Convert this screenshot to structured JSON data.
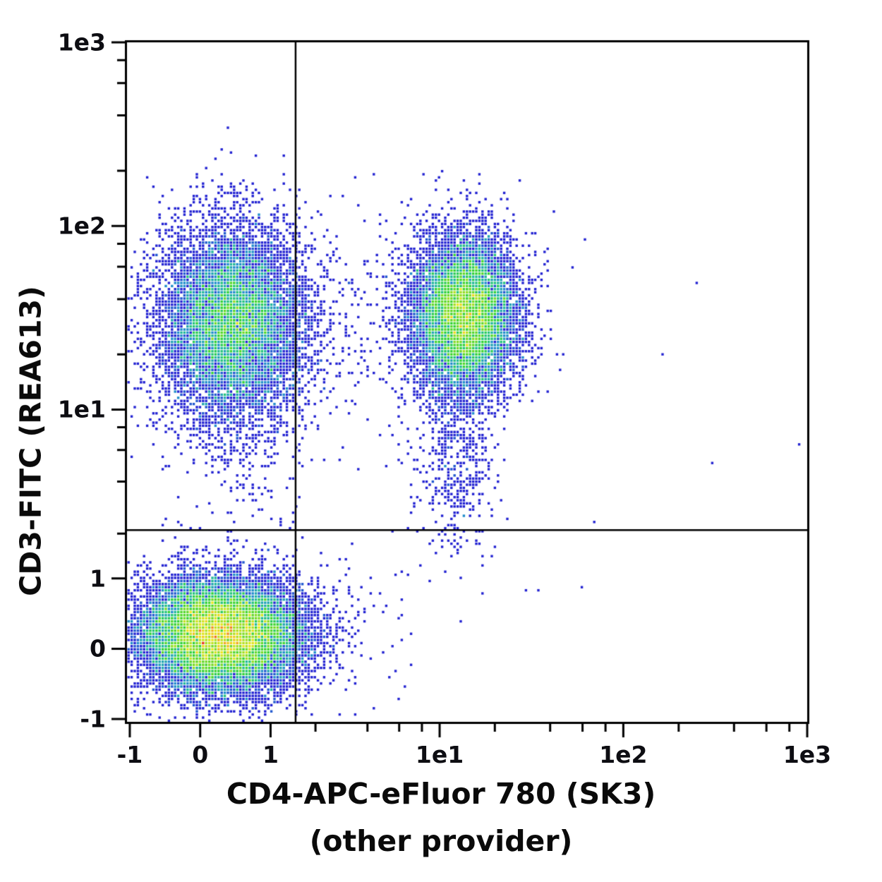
{
  "page": {
    "background": "#ffffff"
  },
  "chart_data": {
    "type": "scatter",
    "subtype": "flow-cytometry pseudocolor density dot plot",
    "title": "",
    "xlabel": "CD4-APC-eFluor 780 (SK3)",
    "xlabel_sub": "(other provider)",
    "ylabel": "CD3-FITC (REA613)",
    "axis_scale": "biexponential (asinh): linear around 0, logarithmic decades above 1",
    "x_range": [
      -1.05,
      1000
    ],
    "y_range": [
      -1.05,
      1000
    ],
    "x_major_ticks": [
      {
        "value": -1,
        "label": "-1"
      },
      {
        "value": 0,
        "label": "0"
      },
      {
        "value": 1,
        "label": "1"
      },
      {
        "value": 10,
        "label": "1e1"
      },
      {
        "value": 100,
        "label": "1e2"
      },
      {
        "value": 1000,
        "label": "1e3"
      }
    ],
    "y_major_ticks": [
      {
        "value": -1,
        "label": "-1"
      },
      {
        "value": 0,
        "label": "0"
      },
      {
        "value": 1,
        "label": "1"
      },
      {
        "value": 10,
        "label": "1e1"
      },
      {
        "value": 100,
        "label": "1e2"
      },
      {
        "value": 1000,
        "label": "1e3"
      }
    ],
    "minor_tick_values": [
      2,
      4,
      6,
      8,
      20,
      40,
      60,
      80,
      200,
      400,
      600,
      800
    ],
    "grid": "off",
    "legend": "none",
    "quadrant_gates": {
      "x_threshold": 1.5,
      "y_threshold": 2.1
    },
    "frame_color": "#000000",
    "text_color": "#0d0d12",
    "density_colormap_stops": [
      [
        0.0,
        "#2222d2"
      ],
      [
        0.18,
        "#2222d2"
      ],
      [
        0.3,
        "#1f8ccc"
      ],
      [
        0.42,
        "#1fbf8f"
      ],
      [
        0.52,
        "#2fd32f"
      ],
      [
        0.68,
        "#90dd22"
      ],
      [
        0.8,
        "#ece61a"
      ],
      [
        0.9,
        "#f29a1a"
      ],
      [
        1.0,
        "#e8381a"
      ]
    ],
    "populations": [
      {
        "name": "CD3- CD4- double-negative (lower left)",
        "kind": "gaussian",
        "center": [
          0.25,
          0.18
        ],
        "sigma_asinh": [
          0.512,
          0.353
        ],
        "events": 15800,
        "core_density": "red-orange"
      },
      {
        "name": "CD3+ CD4- T cells (upper left)",
        "kind": "gaussian",
        "center": [
          0.42,
          30
        ],
        "sigma_asinh": [
          0.46,
          0.6
        ],
        "events": 9600,
        "core_density": "green"
      },
      {
        "name": "CD3+ CD4+ T helper cells (upper right)",
        "kind": "gaussian",
        "center": [
          13.5,
          33
        ],
        "sigma_asinh": [
          0.335,
          0.485
        ],
        "events": 9900,
        "core_density": "yellow with red specks"
      },
      {
        "name": "CD3+ CD4+ low-CD3 tail",
        "kind": "gaussian",
        "center": [
          12,
          6
        ],
        "sigma_asinh": [
          0.25,
          0.66
        ],
        "events": 550
      },
      {
        "name": "upper-middle sparse bridge",
        "kind": "gaussian",
        "center": [
          2.8,
          27
        ],
        "sigma_asinh": [
          0.53,
          0.8
        ],
        "events": 160
      },
      {
        "name": "CD3+ CD4- low tail",
        "kind": "gaussian",
        "center": [
          0.5,
          8
        ],
        "sigma_asinh": [
          0.49,
          0.7
        ],
        "events": 260
      },
      {
        "name": "lower-middle sparse",
        "kind": "gaussian",
        "center": [
          2.7,
          0.28
        ],
        "sigma_asinh": [
          0.49,
          0.49
        ],
        "events": 90
      },
      {
        "name": "noise upper middle",
        "kind": "uniform",
        "x_span": [
          1.5,
          80
        ],
        "y_span": [
          2,
          400
        ],
        "events": 16
      },
      {
        "name": "noise upper right",
        "kind": "uniform",
        "x_span": [
          80,
          950
        ],
        "y_span": [
          5,
          400
        ],
        "events": 4
      },
      {
        "name": "noise lower middle",
        "kind": "uniform",
        "x_span": [
          1.5,
          100
        ],
        "y_span": [
          -0.5,
          1.9
        ],
        "events": 5
      }
    ]
  }
}
